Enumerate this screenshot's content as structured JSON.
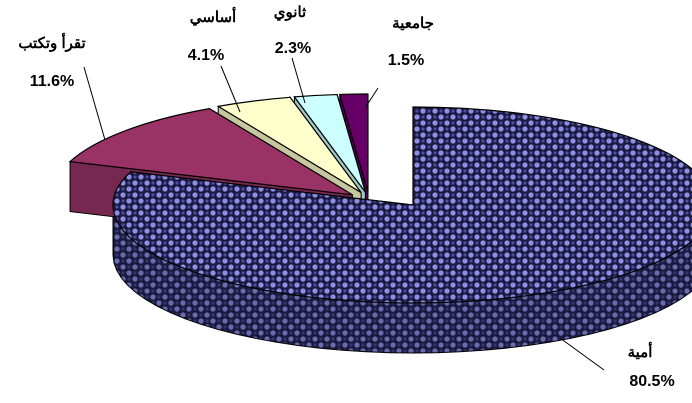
{
  "chart_data": {
    "type": "pie",
    "style": "3d-exploded",
    "legend": "none",
    "slices": [
      {
        "label": "أمية",
        "value": 80.5,
        "value_label": "80.5%",
        "color": "#4d4d9a",
        "pattern": "checkered",
        "highlight": "#8f8fe6"
      },
      {
        "label": "تقرأ وتكتب",
        "value": 11.6,
        "value_label": "11.6%",
        "color": "#993366"
      },
      {
        "label": "أساسي",
        "value": 4.1,
        "value_label": "4.1%",
        "color": "#ffffcc"
      },
      {
        "label": "ثانوي",
        "value": 2.3,
        "value_label": "2.3%",
        "color": "#ccffff"
      },
      {
        "label": "جامعية",
        "value": 1.5,
        "value_label": "1.5%",
        "color": "#660066"
      }
    ]
  }
}
